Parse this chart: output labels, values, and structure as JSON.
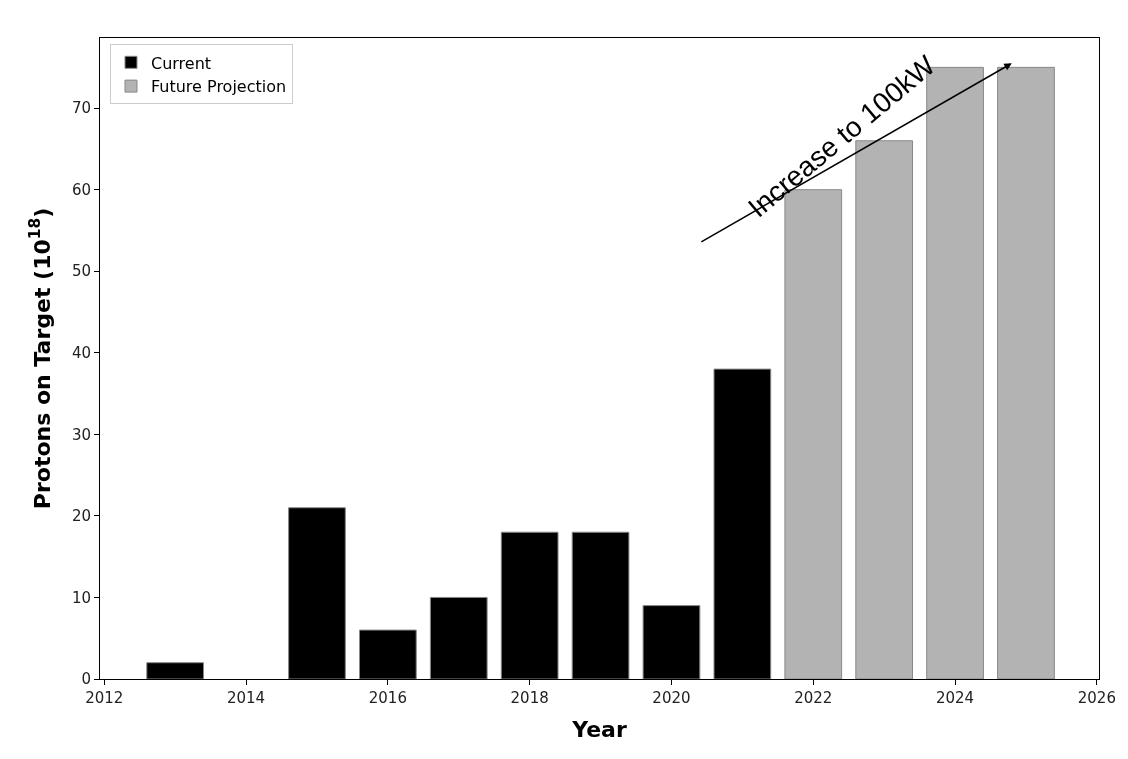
{
  "chart_data": {
    "type": "bar",
    "xlabel": "Year",
    "ylabel": "Protons on Target (10$^{18}$)",
    "series": [
      {
        "name": "Current",
        "color": "#000000",
        "x": [
          2013,
          2015,
          2016,
          2017,
          2018,
          2019,
          2020,
          2021
        ],
        "values": [
          2,
          21,
          6,
          10,
          18,
          18,
          9,
          38
        ]
      },
      {
        "name": "Future Projection",
        "color": "#b3b3b3",
        "x": [
          2022,
          2023,
          2024,
          2025
        ],
        "values": [
          60,
          66,
          75,
          75
        ]
      }
    ],
    "xlim": [
      2011.94,
      2026.03
    ],
    "xticks": [
      2012,
      2014,
      2016,
      2018,
      2020,
      2022,
      2024,
      2026
    ],
    "ylim": [
      0,
      78.6
    ],
    "yticks": [
      0,
      10,
      20,
      30,
      40,
      50,
      60,
      70
    ],
    "annotations": [
      "Increase to 100kW"
    ],
    "legend": "top left"
  }
}
